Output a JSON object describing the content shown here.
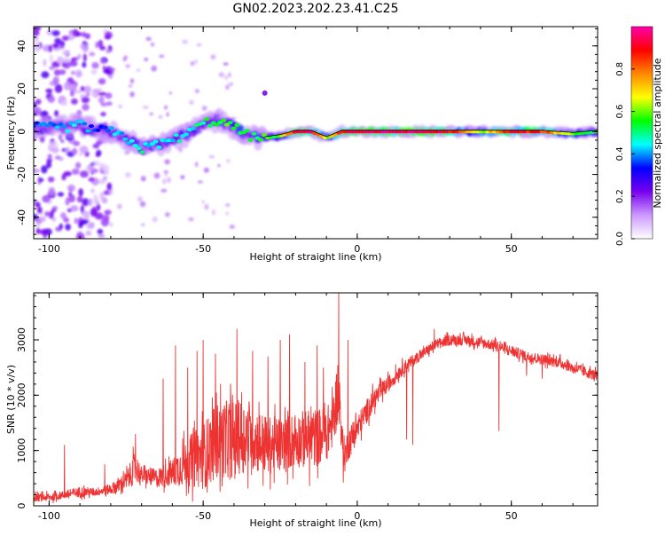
{
  "title": "GN02.2023.202.23.41.C25",
  "chart_data": [
    {
      "type": "heatmap",
      "title": "GN02.2023.202.23.41.C25",
      "xlabel": "Height of straight line (km)",
      "ylabel": "Frequency (Hz)",
      "xlim": [
        -105,
        78
      ],
      "ylim": [
        -50,
        49
      ],
      "x_ticks": [
        -100,
        -50,
        0,
        50
      ],
      "y_ticks": [
        -40,
        -20,
        0,
        20,
        40
      ],
      "x_tick_labels": [
        "-100",
        "-50",
        "0",
        "50"
      ],
      "y_tick_labels": [
        "-40",
        "-20",
        "0",
        "20",
        "40"
      ],
      "colorbar": {
        "label": "Normalized spectral amplitude",
        "range": [
          0,
          1
        ],
        "ticks": [
          0.0,
          0.2,
          0.4,
          0.6,
          0.8
        ],
        "tick_labels": [
          "0.0",
          "0.2",
          "0.4",
          "0.6",
          "0.8"
        ],
        "colors": [
          "#ffffff",
          "#cc99ff",
          "#7700ee",
          "#0000ff",
          "#00ffff",
          "#00ff00",
          "#ffff00",
          "#ff8800",
          "#ff0000",
          "#ff00aa"
        ]
      },
      "ridge": {
        "x": [
          -105,
          -95,
          -90,
          -85,
          -80,
          -75,
          -70,
          -65,
          -60,
          -55,
          -50,
          -45,
          -40,
          -35,
          -30,
          -25,
          -20,
          -15,
          -10,
          -5,
          0,
          10,
          20,
          30,
          40,
          50,
          60,
          70,
          78
        ],
        "y": [
          2,
          2,
          3,
          1,
          0,
          -3,
          -8,
          -6,
          -4,
          -1,
          4,
          5,
          2,
          -2,
          -3,
          -2,
          0,
          0,
          -3,
          0,
          0,
          0,
          0,
          0,
          0,
          0,
          0,
          -1,
          0
        ],
        "amplitude": [
          0.35,
          0.4,
          0.45,
          0.35,
          0.4,
          0.45,
          0.5,
          0.4,
          0.45,
          0.45,
          0.5,
          0.55,
          0.55,
          0.5,
          0.55,
          0.55,
          0.95,
          0.95,
          0.6,
          0.9,
          0.95,
          0.95,
          0.95,
          0.9,
          0.6,
          0.9,
          0.85,
          0.6,
          0.5
        ]
      },
      "noise_region_x": [
        -105,
        -80
      ]
    },
    {
      "type": "line",
      "xlabel": "Height of straight line (km)",
      "ylabel": "SNR (10 * v/v)",
      "xlim": [
        -105,
        78
      ],
      "ylim": [
        0,
        3850
      ],
      "x_ticks": [
        -100,
        -50,
        0,
        50
      ],
      "y_ticks": [
        0,
        1000,
        2000,
        3000
      ],
      "x_tick_labels": [
        "-100",
        "-50",
        "0",
        "50"
      ],
      "y_tick_labels": [
        "0",
        "1000",
        "2000",
        "3000"
      ],
      "color": "#ee3333",
      "series": [
        {
          "x": [
            -105,
            -100,
            -95,
            -90,
            -85,
            -80,
            -75,
            -72,
            -70,
            -65,
            -60,
            -55,
            -50,
            -45,
            -40,
            -35,
            -30,
            -25,
            -20,
            -15,
            -10,
            -8,
            -6,
            -5,
            -4,
            -3,
            0,
            5,
            10,
            15,
            20,
            25,
            30,
            35,
            40,
            45,
            50,
            55,
            60,
            65,
            70,
            75,
            78
          ],
          "y": [
            150,
            150,
            200,
            250,
            250,
            300,
            450,
            700,
            550,
            500,
            600,
            800,
            900,
            1200,
            1200,
            1300,
            1100,
            1100,
            1200,
            1200,
            1300,
            1500,
            2200,
            1200,
            900,
            1100,
            1400,
            1900,
            2200,
            2500,
            2700,
            2900,
            3000,
            3000,
            2950,
            2900,
            2800,
            2700,
            2650,
            2600,
            2500,
            2400,
            2350
          ],
          "spread": [
            150,
            150,
            150,
            200,
            150,
            200,
            350,
            600,
            300,
            350,
            500,
            900,
            1200,
            1400,
            1400,
            1300,
            1100,
            1000,
            1000,
            1100,
            1000,
            900,
            1200,
            600,
            600,
            600,
            500,
            400,
            300,
            250,
            200,
            200,
            200,
            200,
            200,
            200,
            200,
            200,
            200,
            200,
            200,
            200,
            200
          ]
        }
      ],
      "peaks": [
        {
          "x": -95,
          "y": 1100
        },
        {
          "x": -82,
          "y": 750
        },
        {
          "x": -72,
          "y": 1300
        },
        {
          "x": -63,
          "y": 2300
        },
        {
          "x": -59,
          "y": 2900
        },
        {
          "x": -55,
          "y": 2500
        },
        {
          "x": -52,
          "y": 2800
        },
        {
          "x": -50,
          "y": 3000
        },
        {
          "x": -46,
          "y": 2750
        },
        {
          "x": -39,
          "y": 3200
        },
        {
          "x": -34,
          "y": 2800
        },
        {
          "x": -29,
          "y": 2700
        },
        {
          "x": -25,
          "y": 3000
        },
        {
          "x": -22,
          "y": 3100
        },
        {
          "x": -17,
          "y": 2600
        },
        {
          "x": -13,
          "y": 2900
        },
        {
          "x": -11,
          "y": 2500
        },
        {
          "x": -6,
          "y": 3850
        },
        {
          "x": -3,
          "y": 3000
        },
        {
          "x": 25,
          "y": 3200
        }
      ],
      "dips": [
        {
          "x": -4.5,
          "y": 420
        },
        {
          "x": 16,
          "y": 1200
        },
        {
          "x": 18,
          "y": 1100
        },
        {
          "x": 46,
          "y": 1350
        },
        {
          "x": 55,
          "y": 2350
        },
        {
          "x": 60,
          "y": 2300
        },
        {
          "x": 70,
          "y": 2400
        }
      ]
    }
  ]
}
